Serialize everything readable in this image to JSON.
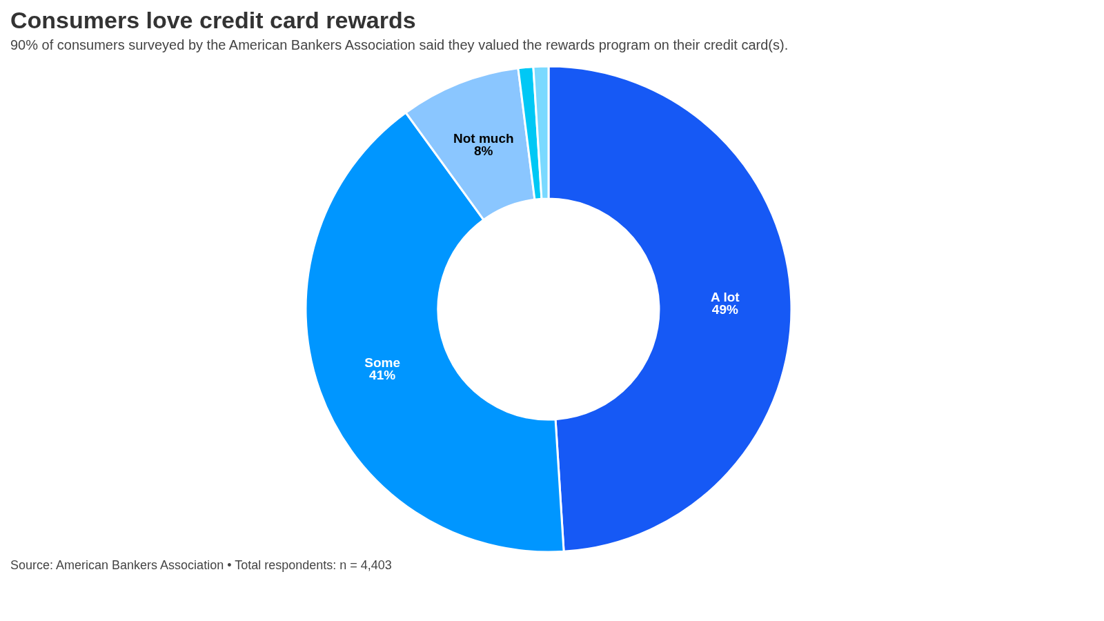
{
  "chart_data": {
    "type": "donut",
    "title": "Consumers love credit card rewards",
    "subtitle": "90% of consumers surveyed by the American Bankers Association said they valued the rewards program on their credit card(s).",
    "categories": [
      "A lot",
      "Some",
      "Not much",
      null,
      null
    ],
    "values": [
      49,
      41,
      8,
      1,
      1
    ],
    "value_labels": [
      "49%",
      "41%",
      "8%",
      null,
      null
    ],
    "colors": [
      "#1659f5",
      "#0096ff",
      "#8ac6ff",
      "#00c8f5",
      "#7ad9ff"
    ],
    "legend": false,
    "annotations": [
      "Source: American Bankers Association • Total respondents: n = 4,403"
    ]
  }
}
